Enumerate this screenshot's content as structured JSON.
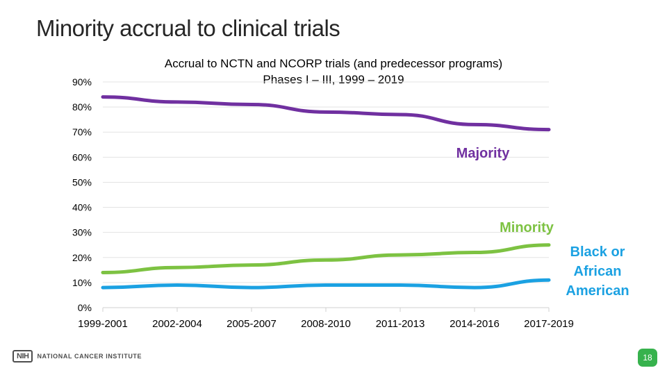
{
  "slide": {
    "title": "Minority accrual to clinical trials",
    "page_number": "18"
  },
  "footer": {
    "nih_mark": "NIH",
    "institute_name": "NATIONAL CANCER INSTITUTE"
  },
  "chart_data": {
    "type": "line",
    "title_line1": "Accrual to NCTN and NCORP trials (and predecessor programs)",
    "title_line2": "Phases I – III, 1999 – 2019",
    "categories": [
      "1999-2001",
      "2002-2004",
      "2005-2007",
      "2008-2010",
      "2011-2013",
      "2014-2016",
      "2017-2019"
    ],
    "y_ticks": [
      "0%",
      "10%",
      "20%",
      "30%",
      "40%",
      "50%",
      "60%",
      "70%",
      "80%",
      "90%"
    ],
    "ylim": [
      0,
      90
    ],
    "grid": true,
    "series": [
      {
        "name": "Majority",
        "values": [
          84,
          82,
          81,
          78,
          77,
          73,
          71
        ],
        "color": "#7030a0"
      },
      {
        "name": "Minority",
        "values": [
          14,
          16,
          17,
          19,
          21,
          22,
          25
        ],
        "color": "#7dc242"
      },
      {
        "name": "Black or African American",
        "values": [
          8,
          9,
          8,
          9,
          9,
          8,
          11
        ],
        "color": "#1ba1e2"
      }
    ]
  }
}
